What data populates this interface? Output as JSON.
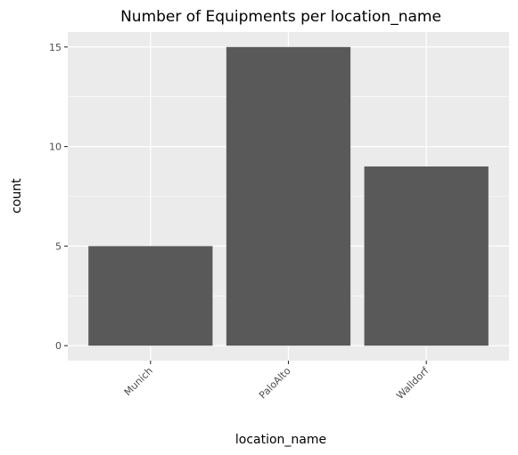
{
  "chart_data": {
    "type": "bar",
    "title": "Number of Equipments per location_name",
    "xlabel": "location_name",
    "ylabel": "count",
    "categories": [
      "Munich",
      "PaloAlto",
      "Walldorf"
    ],
    "values": [
      5,
      15,
      9
    ],
    "ylim": [
      0,
      15
    ],
    "y_ticks": [
      0,
      5,
      10,
      15
    ],
    "grid": true,
    "legend": "none",
    "x_tick_rotation_deg": 45,
    "colors": {
      "bar": "#595959",
      "panel_background": "#ebebeb",
      "gridline": "#ffffff",
      "tick_text": "#4d4d4d",
      "text": "#000000"
    }
  }
}
